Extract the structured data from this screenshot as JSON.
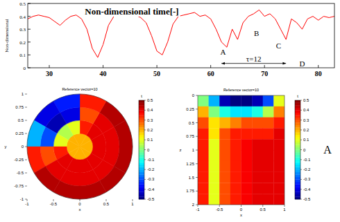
{
  "chart_data": [
    {
      "type": "line",
      "x_label": "Non-dimensional time[-]",
      "y_label": "Non-dimensional",
      "color": "#ff0000",
      "xlim": [
        26,
        83
      ],
      "xticks": [
        30,
        40,
        50,
        60,
        70,
        80
      ],
      "ylim": [
        0,
        0.5
      ],
      "yticks": [
        0,
        0.1,
        0.2,
        0.3,
        0.4,
        0.5
      ],
      "x": [
        26,
        27,
        28,
        29,
        30,
        31,
        32,
        33,
        34,
        35,
        36,
        37,
        38,
        39,
        40,
        41,
        42,
        43,
        44,
        45,
        46,
        47,
        48,
        49,
        50,
        51,
        52,
        53,
        54,
        55,
        56,
        57,
        58,
        59,
        60,
        61,
        62,
        63,
        64,
        65,
        66,
        67,
        68,
        69,
        70,
        71,
        72,
        73,
        74,
        75,
        76,
        77,
        78,
        79,
        80,
        81,
        82,
        83
      ],
      "values": [
        0.38,
        0.4,
        0.41,
        0.4,
        0.39,
        0.36,
        0.33,
        0.37,
        0.4,
        0.41,
        0.38,
        0.3,
        0.15,
        0.08,
        0.18,
        0.33,
        0.4,
        0.41,
        0.42,
        0.4,
        0.41,
        0.39,
        0.35,
        0.25,
        0.13,
        0.1,
        0.2,
        0.34,
        0.4,
        0.41,
        0.42,
        0.43,
        0.4,
        0.41,
        0.38,
        0.3,
        0.2,
        0.16,
        0.3,
        0.22,
        0.35,
        0.4,
        0.42,
        0.45,
        0.4,
        0.42,
        0.38,
        0.3,
        0.22,
        0.38,
        0.35,
        0.3,
        0.38,
        0.4,
        0.37,
        0.4,
        0.39,
        0.4
      ],
      "annotations": [
        {
          "text": "A",
          "x": 62.3,
          "y": 0.1
        },
        {
          "text": "B",
          "x": 68.5,
          "y": 0.25
        },
        {
          "text": "C",
          "x": 72.6,
          "y": 0.15
        },
        {
          "text": "D",
          "x": 77,
          "y": 0.01
        },
        {
          "text": "τ=12",
          "x": 68,
          "y": 0.05,
          "span": [
            62,
            74
          ]
        }
      ]
    },
    {
      "type": "polar_heatmap",
      "reference_label": "Reference vector=10",
      "x_label": "x",
      "y_label": "y",
      "colorbar_label": "t",
      "xlim": [
        -1,
        1
      ],
      "xticks": [
        -1,
        -0.5,
        0,
        0.5,
        1
      ],
      "ylim": [
        -1,
        1
      ],
      "yticks": [
        -1,
        -0.75,
        -0.5,
        -0.25,
        0,
        0.25,
        0.5,
        0.75,
        1
      ],
      "r_edges": [
        0,
        0.25,
        0.5,
        0.75,
        1
      ],
      "theta_edges": [
        0,
        30,
        60,
        90,
        120,
        150,
        180,
        210,
        240,
        270,
        300,
        330,
        360
      ],
      "cells": [
        [
          0.2,
          0.2,
          0.2,
          0.2,
          0.2,
          0.2,
          0.2,
          0.2,
          0.2,
          0.2,
          0.2,
          0.2
        ],
        [
          0.4,
          0.4,
          0.35,
          0.1,
          0.05,
          0.1,
          0.35,
          0.4,
          0.4,
          0.4,
          0.4,
          0.4
        ],
        [
          0.4,
          0.4,
          0.3,
          -0.4,
          -0.45,
          -0.3,
          0.3,
          0.4,
          0.4,
          0.4,
          0.4,
          0.4
        ],
        [
          0.45,
          0.45,
          0.35,
          -0.35,
          -0.4,
          -0.2,
          0.35,
          0.45,
          0.45,
          0.45,
          0.45,
          0.45
        ]
      ],
      "clim": [
        -0.5,
        0.5
      ],
      "cticks": [
        -0.5,
        -0.4,
        -0.3,
        -0.2,
        -0.1,
        0,
        0.1,
        0.2,
        0.3,
        0.4,
        0.5
      ]
    },
    {
      "type": "heatmap",
      "reference_label": "Reference vector=10",
      "x_label": "x",
      "y_label": "z",
      "colorbar_label": "t",
      "xlim": [
        -1,
        1
      ],
      "xticks": [
        -1,
        -0.5,
        0,
        0.5,
        1
      ],
      "ylim": [
        0,
        2
      ],
      "yticks": [
        0,
        0.25,
        0.5,
        0.75,
        1,
        1.25,
        1.5,
        1.75,
        2
      ],
      "x_edges": [
        -1,
        -0.75,
        -0.5,
        -0.25,
        0,
        0.25,
        0.5,
        0.75,
        1
      ],
      "y_edges": [
        0,
        0.2,
        0.4,
        0.6,
        0.8,
        1,
        1.2,
        1.4,
        1.6,
        1.8,
        2
      ],
      "cells": [
        [
          0.0,
          -0.2,
          -0.45,
          -0.5,
          -0.5,
          -0.45,
          -0.3,
          0.1
        ],
        [
          0.2,
          0.0,
          -0.1,
          -0.15,
          -0.15,
          -0.1,
          0.05,
          0.25
        ],
        [
          0.3,
          0.15,
          0.2,
          0.25,
          0.3,
          0.3,
          0.3,
          0.35
        ],
        [
          0.35,
          0.15,
          0.3,
          0.35,
          0.35,
          0.35,
          0.35,
          0.4
        ],
        [
          0.35,
          0.1,
          0.3,
          0.35,
          0.38,
          0.4,
          0.4,
          0.4
        ],
        [
          0.35,
          0.1,
          0.3,
          0.35,
          0.38,
          0.4,
          0.4,
          0.4
        ],
        [
          0.35,
          0.1,
          0.3,
          0.35,
          0.38,
          0.4,
          0.4,
          0.4
        ],
        [
          0.35,
          0.1,
          0.3,
          0.35,
          0.38,
          0.4,
          0.4,
          0.4
        ],
        [
          0.35,
          0.1,
          0.3,
          0.35,
          0.38,
          0.4,
          0.4,
          0.4
        ],
        [
          0.35,
          0.1,
          0.3,
          0.35,
          0.38,
          0.4,
          0.4,
          0.4
        ]
      ],
      "clim": [
        -0.5,
        0.5
      ],
      "cticks": [
        -0.5,
        -0.4,
        -0.3,
        -0.2,
        -0.1,
        0,
        0.1,
        0.2,
        0.3,
        0.4,
        0.5
      ]
    }
  ],
  "panel_label": "A"
}
